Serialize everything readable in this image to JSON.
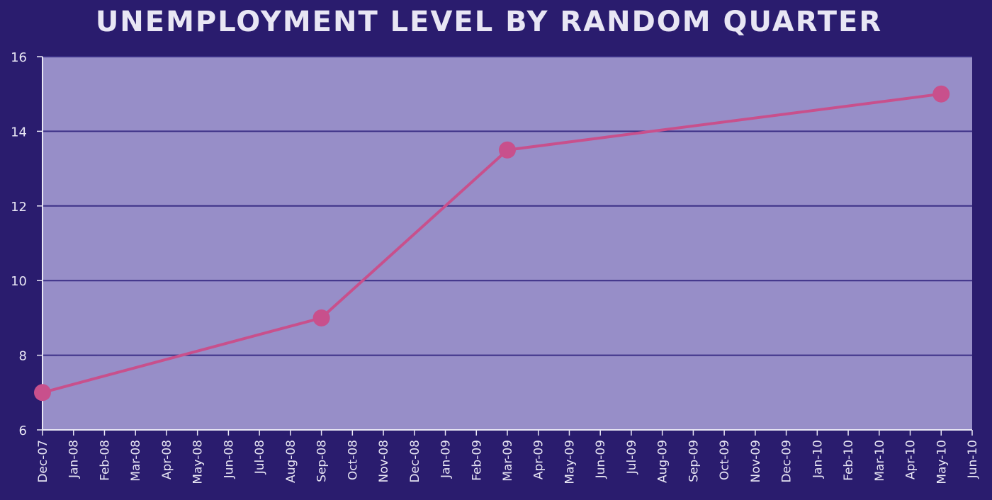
{
  "chart_data": {
    "type": "line",
    "title": "UNEMPLOYMENT LEVEL BY RANDOM QUARTER",
    "xlabel": "",
    "ylabel": "",
    "categories": [
      "Dec-07",
      "Jan-08",
      "Feb-08",
      "Mar-08",
      "Apr-08",
      "May-08",
      "Jun-08",
      "Jul-08",
      "Aug-08",
      "Sep-08",
      "Oct-08",
      "Nov-08",
      "Dec-08",
      "Jan-09",
      "Feb-09",
      "Mar-09",
      "Apr-09",
      "May-09",
      "Jun-09",
      "Jul-09",
      "Aug-09",
      "Sep-09",
      "Oct-09",
      "Nov-09",
      "Dec-09",
      "Jan-10",
      "Feb-10",
      "Mar-10",
      "Apr-10",
      "May-10",
      "Jun-10"
    ],
    "series": [
      {
        "x": [
          "Dec-07",
          "Sep-08",
          "Mar-09",
          "May-10"
        ],
        "values": [
          7,
          9,
          13.5,
          15
        ]
      }
    ],
    "ylim": [
      6,
      16
    ],
    "yticks": [
      6,
      8,
      10,
      12,
      14,
      16
    ],
    "grid": true,
    "legend": "none",
    "colors": {
      "background": "#2a1c6e",
      "plot_area": "#978ec8",
      "gridline": "#3b2f86",
      "line": "#c8508c",
      "text": "#e8e6f4"
    }
  }
}
